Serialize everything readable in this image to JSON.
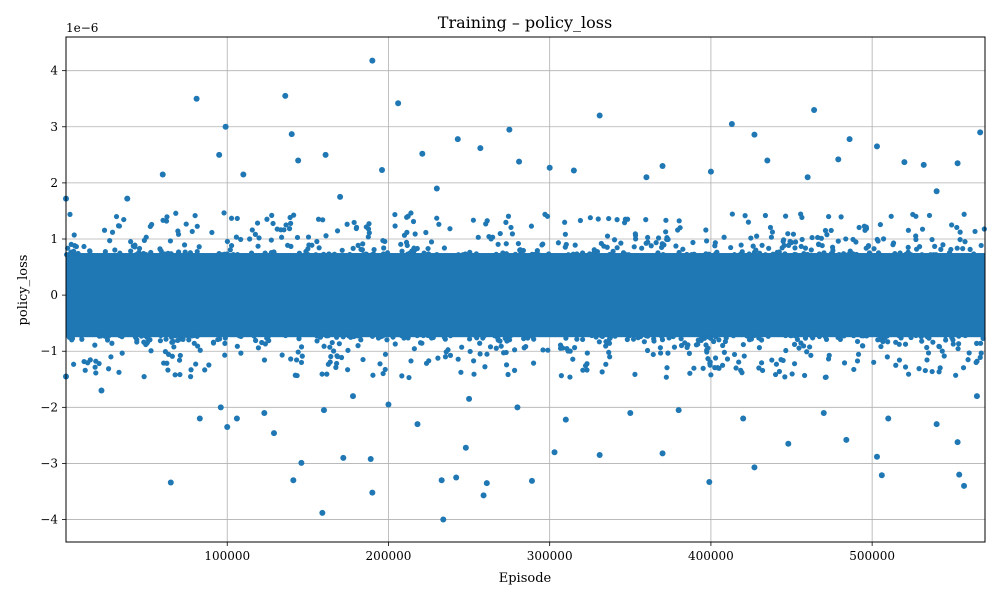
{
  "chart_data": {
    "type": "scatter",
    "title": "Training – policy_loss",
    "xlabel": "Episode",
    "ylabel": "policy_loss",
    "y_scale_label": "1e−6",
    "xlim": [
      0,
      570000
    ],
    "ylim": [
      -4.4,
      4.6
    ],
    "x_ticks": [
      100000,
      200000,
      300000,
      400000,
      500000
    ],
    "x_tick_labels": [
      "100000",
      "200000",
      "300000",
      "400000",
      "500000"
    ],
    "y_ticks": [
      -4,
      -3,
      -2,
      -1,
      0,
      1,
      2,
      3,
      4
    ],
    "y_tick_labels": [
      "−4",
      "−3",
      "−2",
      "−1",
      "0",
      "1",
      "2",
      "3",
      "4"
    ],
    "grid": true,
    "series": [
      {
        "color": "#1f77b4",
        "band": {
          "y_min": -0.75,
          "y_max": 0.75
        },
        "points": [
          [
            81000,
            3.5
          ],
          [
            136000,
            3.55
          ],
          [
            190000,
            4.18
          ],
          [
            206000,
            3.42
          ],
          [
            331000,
            3.2
          ],
          [
            413000,
            3.05
          ],
          [
            464000,
            3.3
          ],
          [
            99000,
            3.0
          ],
          [
            140000,
            2.87
          ],
          [
            275000,
            2.95
          ],
          [
            427000,
            2.86
          ],
          [
            486000,
            2.78
          ],
          [
            567000,
            2.9
          ],
          [
            243000,
            2.78
          ],
          [
            95000,
            2.5
          ],
          [
            161000,
            2.5
          ],
          [
            221000,
            2.52
          ],
          [
            257000,
            2.62
          ],
          [
            503000,
            2.65
          ],
          [
            60000,
            2.15
          ],
          [
            144000,
            2.4
          ],
          [
            196000,
            2.23
          ],
          [
            281000,
            2.38
          ],
          [
            315000,
            2.22
          ],
          [
            370000,
            2.3
          ],
          [
            435000,
            2.4
          ],
          [
            479000,
            2.42
          ],
          [
            520000,
            2.37
          ],
          [
            553000,
            2.35
          ],
          [
            532000,
            2.32
          ],
          [
            0,
            1.72
          ],
          [
            38000,
            1.72
          ],
          [
            110000,
            2.15
          ],
          [
            170000,
            1.75
          ],
          [
            230000,
            1.9
          ],
          [
            300000,
            2.27
          ],
          [
            360000,
            2.1
          ],
          [
            400000,
            2.2
          ],
          [
            460000,
            2.1
          ],
          [
            540000,
            1.85
          ],
          [
            65000,
            -3.34
          ],
          [
            96000,
            -2.0
          ],
          [
            129000,
            -2.46
          ],
          [
            141000,
            -3.3
          ],
          [
            146000,
            -2.99
          ],
          [
            159000,
            -3.88
          ],
          [
            172000,
            -2.9
          ],
          [
            189000,
            -2.92
          ],
          [
            190000,
            -3.52
          ],
          [
            218000,
            -2.3
          ],
          [
            233000,
            -3.3
          ],
          [
            234000,
            -4.0
          ],
          [
            242000,
            -3.25
          ],
          [
            248000,
            -2.72
          ],
          [
            259000,
            -3.57
          ],
          [
            261000,
            -3.35
          ],
          [
            289000,
            -3.31
          ],
          [
            303000,
            -2.8
          ],
          [
            331000,
            -2.85
          ],
          [
            370000,
            -2.82
          ],
          [
            399000,
            -3.33
          ],
          [
            427000,
            -3.07
          ],
          [
            448000,
            -2.65
          ],
          [
            484000,
            -2.58
          ],
          [
            503000,
            -2.88
          ],
          [
            506000,
            -3.21
          ],
          [
            553000,
            -2.62
          ],
          [
            554000,
            -3.2
          ],
          [
            557000,
            -3.4
          ],
          [
            0,
            -1.45
          ],
          [
            22000,
            -1.7
          ],
          [
            83000,
            -2.2
          ],
          [
            100000,
            -2.35
          ],
          [
            106000,
            -2.2
          ],
          [
            123000,
            -2.1
          ],
          [
            160000,
            -2.05
          ],
          [
            178000,
            -1.8
          ],
          [
            200000,
            -1.95
          ],
          [
            250000,
            -1.85
          ],
          [
            280000,
            -2.0
          ],
          [
            310000,
            -2.22
          ],
          [
            350000,
            -2.1
          ],
          [
            380000,
            -2.05
          ],
          [
            420000,
            -2.2
          ],
          [
            470000,
            -2.1
          ],
          [
            510000,
            -2.2
          ],
          [
            540000,
            -2.3
          ],
          [
            565000,
            -1.8
          ]
        ]
      }
    ]
  }
}
